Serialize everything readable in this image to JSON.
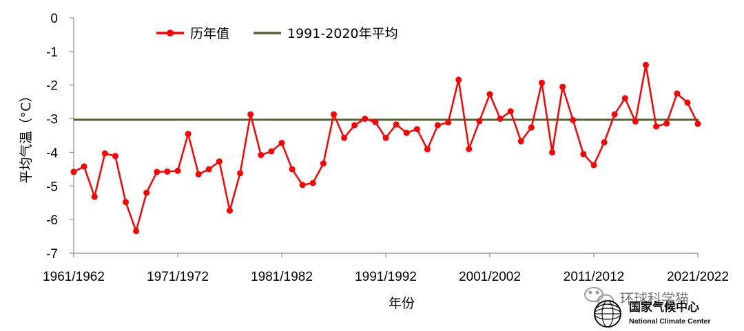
{
  "chart_data": {
    "type": "line",
    "xlabel": "年份",
    "ylabel": "平均气温（°C）",
    "ylim": [
      -7,
      0
    ],
    "yticks": [
      0,
      -1,
      -2,
      -3,
      -4,
      -5,
      -6,
      -7
    ],
    "xtick_labels": [
      "1961/1962",
      "1971/1972",
      "1981/1982",
      "1991/1992",
      "2001/2002",
      "2011/2012",
      "2021/2022"
    ],
    "grid": false,
    "legend_position": "top",
    "series": [
      {
        "name": "历年值",
        "color": "#ff0000",
        "values": [
          -4.58,
          -4.42,
          -5.32,
          -4.03,
          -4.11,
          -5.48,
          -6.34,
          -5.2,
          -4.58,
          -4.57,
          -4.55,
          -3.45,
          -4.65,
          -4.5,
          -4.27,
          -5.73,
          -4.62,
          -2.87,
          -4.08,
          -3.97,
          -3.72,
          -4.5,
          -4.97,
          -4.91,
          -4.33,
          -2.87,
          -3.57,
          -3.19,
          -3.0,
          -3.1,
          -3.57,
          -3.17,
          -3.42,
          -3.31,
          -3.91,
          -3.19,
          -3.11,
          -1.84,
          -3.9,
          -3.07,
          -2.27,
          -3.0,
          -2.78,
          -3.67,
          -3.26,
          -1.93,
          -4.0,
          -2.05,
          -3.04,
          -4.05,
          -4.38,
          -3.7,
          -2.87,
          -2.39,
          -3.08,
          -1.4,
          -3.23,
          -3.14,
          -2.25,
          -2.52,
          -3.15
        ]
      },
      {
        "name": "1991-2020年平均",
        "color": "#4f6228",
        "values": [
          -3.03
        ]
      }
    ]
  },
  "watermark": {
    "text": "环球科学猫",
    "org_cn": "国家气候中心",
    "org_en": "National Climate Center"
  }
}
